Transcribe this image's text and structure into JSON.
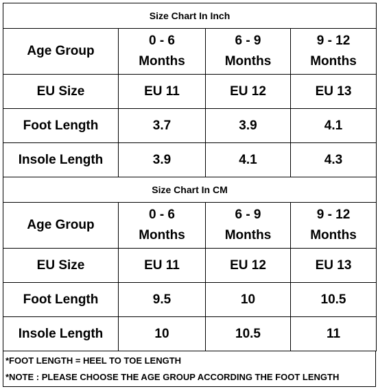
{
  "tables": [
    {
      "title": "Size Chart In Inch",
      "rows": [
        [
          "Age Group",
          "0 - 6\nMonths",
          "6 - 9\nMonths",
          "9 - 12\nMonths"
        ],
        [
          "EU Size",
          "EU 11",
          "EU 12",
          "EU 13"
        ],
        [
          "Foot Length",
          "3.7",
          "3.9",
          "4.1"
        ],
        [
          "Insole Length",
          "3.9",
          "4.1",
          "4.3"
        ]
      ]
    },
    {
      "title": "Size Chart In CM",
      "rows": [
        [
          "Age Group",
          "0 - 6\nMonths",
          "6 - 9\nMonths",
          "9 - 12\nMonths"
        ],
        [
          "EU Size",
          "EU 11",
          "EU 12",
          "EU 13"
        ],
        [
          "Foot Length",
          "9.5",
          "10",
          "10.5"
        ],
        [
          "Insole Length",
          "10",
          "10.5",
          "11"
        ]
      ]
    }
  ],
  "notes": [
    "*FOOT LENGTH = HEEL TO TOE LENGTH",
    "*NOTE : PLEASE CHOOSE THE AGE GROUP ACCORDING THE FOOT  LENGTH"
  ]
}
